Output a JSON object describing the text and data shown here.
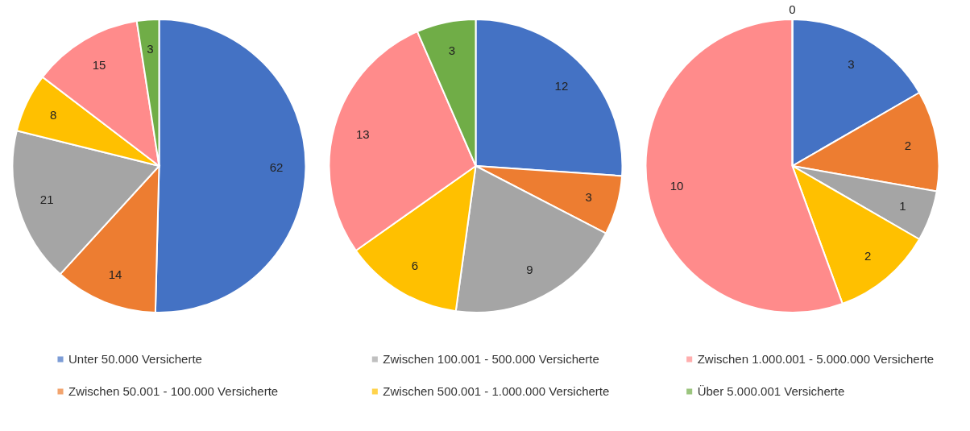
{
  "chart_data": [
    {
      "type": "pie",
      "categories": [
        "Unter 50.000 Versicherte",
        "Zwischen 50.001 - 100.000 Versicherte",
        "Zwischen 100.001 - 500.000 Versicherte",
        "Zwischen 500.001 - 1.000.000 Versicherte",
        "Zwischen 1.000.001 - 5.000.000 Versicherte",
        "Über 5.000.001 Versicherte"
      ],
      "values": [
        62,
        14,
        21,
        8,
        15,
        3
      ],
      "colors": [
        "#4472c4",
        "#ed7d31",
        "#a5a5a5",
        "#ffc000",
        "#ff8b8b",
        "#70ad47"
      ],
      "data_labels": true,
      "legend": "bottom"
    },
    {
      "type": "pie",
      "categories": [
        null,
        null,
        null,
        null,
        null,
        null
      ],
      "values": [
        12,
        3,
        9,
        6,
        13,
        3
      ],
      "colors": [
        "#4472c4",
        "#ed7d31",
        "#a5a5a5",
        "#ffc000",
        "#ff8b8b",
        "#70ad47"
      ],
      "data_labels": true
    },
    {
      "type": "pie",
      "categories": [
        null,
        null,
        null,
        null,
        null,
        null
      ],
      "values": [
        3,
        2,
        1,
        2,
        10,
        0
      ],
      "colors": [
        "#4472c4",
        "#ed7d31",
        "#a5a5a5",
        "#ffc000",
        "#ff8b8b",
        "#70ad47"
      ],
      "value_labels": [
        "3",
        "2",
        "1",
        "2",
        "10",
        "0"
      ]
    }
  ]
}
